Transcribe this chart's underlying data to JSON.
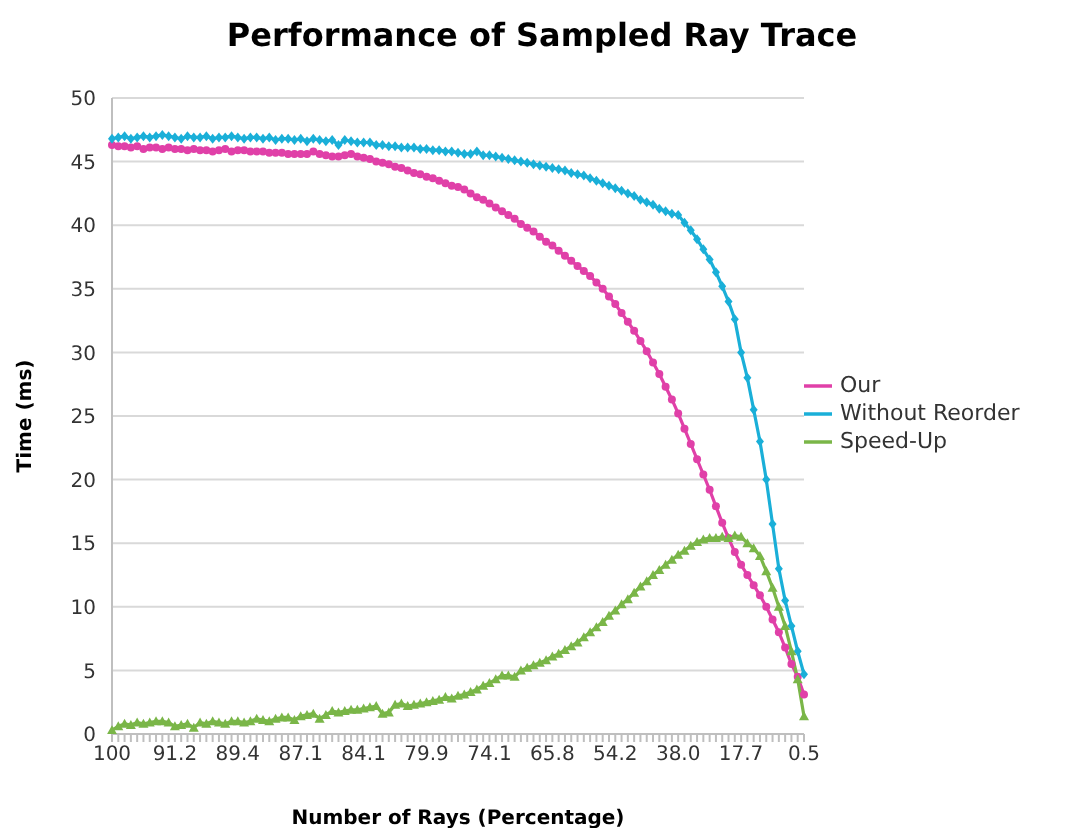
{
  "chart_data": {
    "type": "line",
    "title": "Performance of Sampled Ray Trace",
    "xlabel": "Number of Rays (Percentage)",
    "ylabel": "Time (ms)",
    "categories": [
      "100",
      null,
      null,
      null,
      null,
      null,
      null,
      null,
      null,
      null,
      "91.2",
      null,
      null,
      null,
      null,
      null,
      null,
      null,
      null,
      null,
      "89.4",
      null,
      null,
      null,
      null,
      null,
      null,
      null,
      null,
      null,
      "87.1",
      null,
      null,
      null,
      null,
      null,
      null,
      null,
      null,
      null,
      "84.1",
      null,
      null,
      null,
      null,
      null,
      null,
      null,
      null,
      null,
      "79.9",
      null,
      null,
      null,
      null,
      null,
      null,
      null,
      null,
      null,
      "74.1",
      null,
      null,
      null,
      null,
      null,
      null,
      null,
      null,
      null,
      "65.8",
      null,
      null,
      null,
      null,
      null,
      null,
      null,
      null,
      null,
      "54.2",
      null,
      null,
      null,
      null,
      null,
      null,
      null,
      null,
      null,
      "38.0",
      null,
      null,
      null,
      null,
      null,
      null,
      null,
      null,
      null,
      "17.7",
      null,
      null,
      null,
      null,
      null,
      null,
      null,
      null,
      null,
      "0.5"
    ],
    "series": [
      {
        "name": "Our",
        "color": "#e040a8",
        "marker": "circle",
        "values": [
          46.3,
          46.2,
          46.2,
          46.1,
          46.2,
          46.0,
          46.1,
          46.1,
          46.0,
          46.1,
          46.0,
          46.0,
          45.9,
          46.0,
          45.9,
          45.9,
          45.8,
          45.9,
          46.0,
          45.8,
          45.9,
          45.9,
          45.8,
          45.8,
          45.8,
          45.7,
          45.7,
          45.7,
          45.6,
          45.6,
          45.6,
          45.6,
          45.8,
          45.6,
          45.5,
          45.4,
          45.4,
          45.5,
          45.6,
          45.4,
          45.3,
          45.2,
          45.0,
          44.9,
          44.8,
          44.6,
          44.5,
          44.3,
          44.1,
          44.0,
          43.8,
          43.7,
          43.5,
          43.3,
          43.1,
          43.0,
          42.8,
          42.5,
          42.2,
          42.0,
          41.7,
          41.4,
          41.1,
          40.8,
          40.5,
          40.1,
          39.8,
          39.5,
          39.1,
          38.7,
          38.4,
          38.0,
          37.6,
          37.2,
          36.8,
          36.4,
          36.0,
          35.5,
          35.0,
          34.4,
          33.8,
          33.1,
          32.4,
          31.7,
          30.9,
          30.1,
          29.2,
          28.3,
          27.3,
          26.3,
          25.2,
          24.0,
          22.8,
          21.6,
          20.4,
          19.2,
          17.9,
          16.6,
          15.4,
          14.3,
          13.3,
          12.5,
          11.7,
          10.9,
          10.0,
          9.0,
          8.0,
          6.8,
          5.5,
          4.5,
          3.1
        ]
      },
      {
        "name": "Without Reorder",
        "color": "#1aafd8",
        "marker": "diamond",
        "values": [
          46.8,
          46.9,
          47.0,
          46.8,
          46.9,
          47.0,
          46.9,
          47.0,
          47.1,
          47.0,
          46.9,
          46.8,
          47.0,
          46.9,
          46.9,
          47.0,
          46.8,
          46.9,
          46.9,
          47.0,
          46.9,
          46.8,
          46.9,
          46.9,
          46.8,
          46.9,
          46.7,
          46.8,
          46.8,
          46.7,
          46.8,
          46.6,
          46.8,
          46.7,
          46.6,
          46.7,
          46.3,
          46.7,
          46.6,
          46.5,
          46.5,
          46.5,
          46.3,
          46.3,
          46.2,
          46.2,
          46.1,
          46.1,
          46.1,
          46.0,
          46.0,
          45.9,
          45.9,
          45.8,
          45.8,
          45.7,
          45.6,
          45.6,
          45.8,
          45.5,
          45.5,
          45.4,
          45.3,
          45.2,
          45.1,
          45.0,
          44.9,
          44.8,
          44.7,
          44.6,
          44.5,
          44.4,
          44.3,
          44.1,
          44.0,
          43.9,
          43.7,
          43.5,
          43.3,
          43.1,
          42.9,
          42.7,
          42.5,
          42.3,
          42.0,
          41.8,
          41.6,
          41.3,
          41.1,
          40.9,
          40.8,
          40.2,
          39.6,
          38.9,
          38.1,
          37.3,
          36.3,
          35.2,
          34.0,
          32.6,
          30.0,
          28.0,
          25.5,
          23.0,
          20.0,
          16.5,
          13.0,
          10.5,
          8.5,
          6.5,
          4.7
        ]
      },
      {
        "name": "Speed-Up",
        "color": "#7ab648",
        "marker": "triangle",
        "values": [
          0.3,
          0.6,
          0.8,
          0.7,
          0.9,
          0.8,
          0.9,
          1.0,
          1.0,
          0.9,
          0.6,
          0.7,
          0.8,
          0.5,
          0.9,
          0.8,
          1.0,
          0.9,
          0.8,
          1.0,
          1.0,
          0.9,
          1.0,
          1.2,
          1.1,
          1.0,
          1.2,
          1.3,
          1.3,
          1.1,
          1.4,
          1.5,
          1.6,
          1.2,
          1.5,
          1.8,
          1.7,
          1.8,
          1.9,
          1.9,
          2.0,
          2.1,
          2.2,
          1.6,
          1.7,
          2.3,
          2.4,
          2.2,
          2.3,
          2.4,
          2.5,
          2.6,
          2.7,
          2.9,
          2.8,
          3.0,
          3.1,
          3.3,
          3.5,
          3.8,
          4.0,
          4.3,
          4.6,
          4.6,
          4.5,
          5.0,
          5.2,
          5.4,
          5.6,
          5.8,
          6.1,
          6.3,
          6.6,
          6.9,
          7.2,
          7.6,
          8.0,
          8.4,
          8.8,
          9.3,
          9.7,
          10.2,
          10.6,
          11.1,
          11.6,
          12.0,
          12.5,
          12.9,
          13.3,
          13.7,
          14.1,
          14.4,
          14.8,
          15.1,
          15.3,
          15.4,
          15.4,
          15.5,
          15.4,
          15.6,
          15.5,
          15.0,
          14.6,
          14.0,
          12.8,
          11.5,
          10.0,
          8.5,
          6.5,
          4.3,
          1.4
        ]
      }
    ],
    "ylim": [
      0,
      50
    ],
    "yticks": [
      0,
      5,
      10,
      15,
      20,
      25,
      30,
      35,
      40,
      45,
      50
    ],
    "grid": "y",
    "legend": "right"
  }
}
